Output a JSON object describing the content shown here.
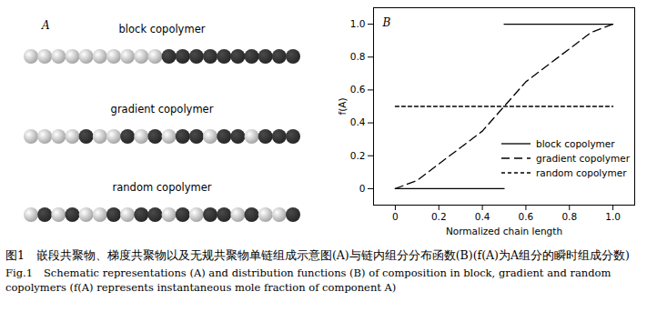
{
  "panel_a": {
    "label": "A",
    "colors": [
      "#c8c8c8",
      "#303030"
    ],
    "chains": [
      {
        "name": "block copolymer",
        "sequence": [
          0,
          0,
          0,
          0,
          0,
          0,
          0,
          0,
          0,
          0,
          1,
          1,
          1,
          1,
          1,
          1,
          1,
          1,
          1,
          1
        ]
      },
      {
        "name": "gradient copolymer",
        "sequence": [
          0,
          0,
          0,
          0,
          1,
          0,
          0,
          1,
          0,
          1,
          0,
          1,
          1,
          0,
          1,
          1,
          0,
          1,
          1,
          1
        ]
      },
      {
        "name": "random copolymer",
        "sequence": [
          0,
          1,
          0,
          1,
          0,
          0,
          1,
          0,
          1,
          1,
          0,
          1,
          0,
          1,
          1,
          0,
          1,
          0,
          0,
          1
        ]
      }
    ]
  },
  "chart_data": {
    "type": "line",
    "panel_label": "B",
    "x_label": "Normalized chain length",
    "y_label": "f(A)",
    "xlim": [
      -0.1,
      1.1
    ],
    "ylim": [
      -0.1,
      1.1
    ],
    "xticks": [
      0,
      0.2,
      0.4,
      0.6,
      0.8,
      {
        "value": 1,
        "label": "1.0"
      }
    ],
    "yticks": [
      0,
      0.2,
      0.4,
      0.6,
      0.8,
      {
        "value": 1,
        "label": "1.0"
      }
    ],
    "grid": false,
    "legend": "lower right",
    "series": [
      {
        "name": "block copolymer",
        "color": "#000000",
        "line_style": "solid",
        "x": [
          0,
          0.5,
          0.5,
          0.5,
          1.0
        ],
        "values": [
          0,
          0,
          null,
          1,
          1
        ]
      },
      {
        "name": "gradient copolymer",
        "color": "#000000",
        "line_style": "long_dash",
        "x": [
          0,
          0.1,
          0.2,
          0.3,
          0.4,
          0.5,
          0.6,
          0.7,
          0.8,
          0.9,
          1.0
        ],
        "values": [
          0,
          0.05,
          0.15,
          0.25,
          0.35,
          0.5,
          0.65,
          0.75,
          0.85,
          0.95,
          1.0
        ]
      },
      {
        "name": "random copolymer",
        "color": "#000000",
        "line_style": "dash",
        "x": [
          0,
          1.0
        ],
        "values": [
          0.5,
          0.5
        ]
      }
    ]
  },
  "caption": {
    "zh": "图1　嵌段共聚物、梯度共聚物以及无规共聚物单链组成示意图(A)与链内组分分布函数(B)(f(A)为A组分的瞬时组成分数)",
    "en": "Fig.1　Schematic representations (A) and distribution functions (B) of composition in block, gradient and random copolymers (f(A) represents instantaneous mole fraction of component A)"
  }
}
